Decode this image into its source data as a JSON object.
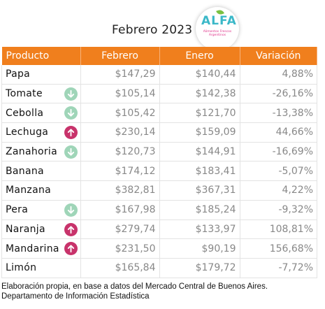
{
  "header": {
    "title": "Febrero 2023",
    "logo": {
      "word": "ALFA",
      "subtitle": "Alimentos Frescos Argentinos"
    }
  },
  "table": {
    "columns": [
      "Producto",
      "Febrero",
      "Enero",
      "Variación"
    ],
    "rows": [
      {
        "producto": "Papa",
        "febrero": "$147,29",
        "enero": "$140,44",
        "variacion": "4,88%",
        "trend": "none"
      },
      {
        "producto": "Tomate",
        "febrero": "$105,14",
        "enero": "$142,38",
        "variacion": "-26,16%",
        "trend": "down"
      },
      {
        "producto": "Cebolla",
        "febrero": "$105,42",
        "enero": "$121,70",
        "variacion": "-13,38%",
        "trend": "down"
      },
      {
        "producto": "Lechuga",
        "febrero": "$230,14",
        "enero": "$159,09",
        "variacion": "44,66%",
        "trend": "up"
      },
      {
        "producto": "Zanahoria",
        "febrero": "$120,73",
        "enero": "$144,91",
        "variacion": "-16,69%",
        "trend": "down"
      },
      {
        "producto": "Banana",
        "febrero": "$174,12",
        "enero": "$183,41",
        "variacion": "-5,07%",
        "trend": "none"
      },
      {
        "producto": "Manzana",
        "febrero": "$382,81",
        "enero": "$367,31",
        "variacion": "4,22%",
        "trend": "none"
      },
      {
        "producto": "Pera",
        "febrero": "$167,98",
        "enero": "$185,24",
        "variacion": "-9,32%",
        "trend": "down"
      },
      {
        "producto": "Naranja",
        "febrero": "$279,74",
        "enero": "$133,97",
        "variacion": "108,81%",
        "trend": "up"
      },
      {
        "producto": "Mandarina",
        "febrero": "$231,50",
        "enero": "$90,19",
        "variacion": "156,68%",
        "trend": "up"
      },
      {
        "producto": "Limón",
        "febrero": "$165,84",
        "enero": "$179,72",
        "variacion": "-7,72%",
        "trend": "none"
      }
    ]
  },
  "footer": {
    "line1": "Elaboración propia, en base a datos del Mercado Central de Buenos Aires.",
    "line2": "Departamento de Información Estadística"
  },
  "colors": {
    "header_bg": "#f07f1d",
    "arrow_down": "#9fd5b8",
    "arrow_up": "#c8336b",
    "logo_text": "#3bb8c8",
    "logo_sub": "#e0338a"
  },
  "icons": {
    "down": "arrow-down-circle-icon",
    "up": "arrow-up-circle-icon"
  }
}
